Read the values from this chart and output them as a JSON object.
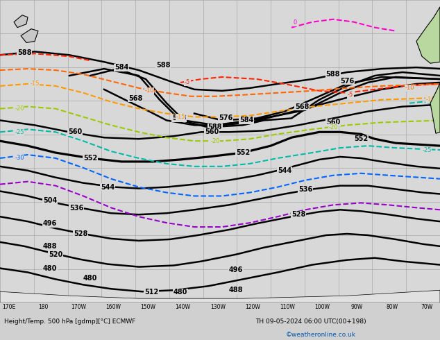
{
  "title": "Height/Temp. 500 hPa [gdmp][°C] ECMWF",
  "subtitle": "TH 09-05-2024 06:00 UTC(00+198)",
  "credit": "©weatheronline.co.uk",
  "background_color": "#d8d8d8",
  "grid_color": "#aaaaaa",
  "z500_color": "#000000",
  "temp_colors": {
    "0": "#ff00cc",
    "-5": "#ff2200",
    "-10": "#ff6600",
    "-15": "#ff9900",
    "-20": "#99cc00",
    "-25": "#00bbaa",
    "-30": "#0066ff",
    "-35": "#9900cc"
  },
  "bottom_label": "Height/Temp. 500 hPa [gdmp][°C] ECMWF",
  "bottom_date": "TH 09-05-2024 06:00 UTC(00+198)",
  "lon_labels": [
    "170E",
    "180",
    "170W",
    "160W",
    "150W",
    "140W",
    "130W",
    "120W",
    "110W",
    "100W",
    "90W",
    "80W",
    "70W"
  ],
  "figsize": [
    6.34,
    4.9
  ],
  "dpi": 100
}
